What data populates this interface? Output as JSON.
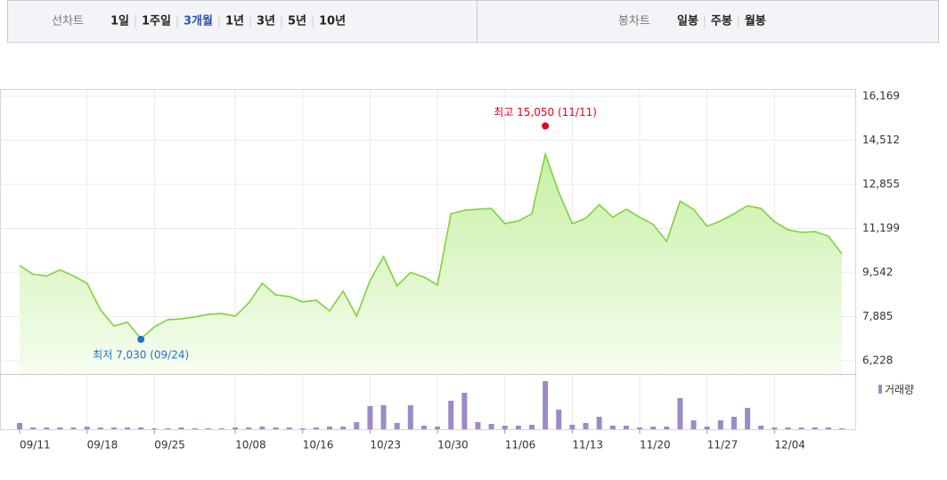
{
  "toolbar": {
    "line_label": "선차트",
    "line_periods": [
      "1일",
      "1주일",
      "3개월",
      "1년",
      "3년",
      "5년",
      "10년"
    ],
    "selected_index": 2,
    "candle_label": "봉차트",
    "candle_periods": [
      "일봉",
      "주봉",
      "월봉"
    ]
  },
  "chart_data": {
    "type": "area",
    "categories": [
      "09/11",
      null,
      null,
      null,
      null,
      "09/18",
      null,
      null,
      null,
      null,
      "09/25",
      null,
      null,
      null,
      null,
      null,
      "10/08",
      null,
      null,
      null,
      null,
      "10/16",
      null,
      null,
      null,
      null,
      "10/23",
      null,
      null,
      null,
      null,
      "10/30",
      null,
      null,
      null,
      null,
      "11/06",
      null,
      null,
      null,
      null,
      "11/13",
      null,
      null,
      null,
      null,
      "11/20",
      null,
      null,
      null,
      null,
      "11/27",
      null,
      null,
      null,
      null,
      "12/04",
      null,
      null,
      null,
      null,
      null
    ],
    "series": [
      {
        "color": "#7fd23a",
        "values": [
          9810,
          9475,
          9410,
          9640,
          9410,
          9140,
          8140,
          7530,
          7670,
          7050,
          7500,
          7770,
          7800,
          7870,
          7970,
          8000,
          7900,
          8400,
          9140,
          8700,
          8640,
          8440,
          8500,
          8100,
          8840,
          7900,
          9240,
          10140,
          9040,
          9540,
          9370,
          9070,
          11750,
          11880,
          11920,
          11950,
          11380,
          11480,
          11750,
          13990,
          12550,
          11380,
          11580,
          12090,
          11620,
          11920,
          11620,
          11350,
          10710,
          12220,
          11920,
          11280,
          11480,
          11750,
          12050,
          11950,
          11450,
          11150,
          11050,
          11080,
          10910,
          10240
        ]
      },
      {
        "name": "거래량",
        "color": "#9c8ac8",
        "axis": "y2",
        "values": [
          7,
          2,
          2,
          2,
          2,
          3,
          2,
          2,
          2,
          2,
          1,
          1,
          2,
          1,
          1,
          1,
          2,
          2,
          3,
          2,
          2,
          1,
          2,
          3,
          3,
          8,
          26,
          27,
          7,
          27,
          4,
          3,
          32,
          41,
          8,
          6,
          4,
          4,
          5,
          54,
          22,
          5,
          7,
          14,
          4,
          4,
          2,
          3,
          3,
          35,
          10,
          3,
          10,
          14,
          24,
          4,
          2,
          2,
          2,
          2,
          2,
          1
        ]
      }
    ],
    "ylim": [
      6228,
      16169
    ],
    "yticks": [
      {
        "value": 6228,
        "label": "6,228"
      },
      {
        "value": 7885,
        "label": "7,885"
      },
      {
        "value": 9542,
        "label": "9,542"
      },
      {
        "value": 11199,
        "label": "11,199"
      },
      {
        "value": 12855,
        "label": "12,855"
      },
      {
        "value": 14512,
        "label": "14,512"
      },
      {
        "value": 16169,
        "label": "16,169"
      }
    ],
    "y2lim": [
      0,
      60
    ],
    "grid": true,
    "annotations": [
      {
        "text": "최고 15,050 (11/11)",
        "index": 39,
        "value": 15050,
        "color": "#e8001c"
      },
      {
        "text": "최저 7,030 (09/24)",
        "index": 9,
        "value": 7030,
        "color": "#1f6fd0"
      }
    ]
  }
}
